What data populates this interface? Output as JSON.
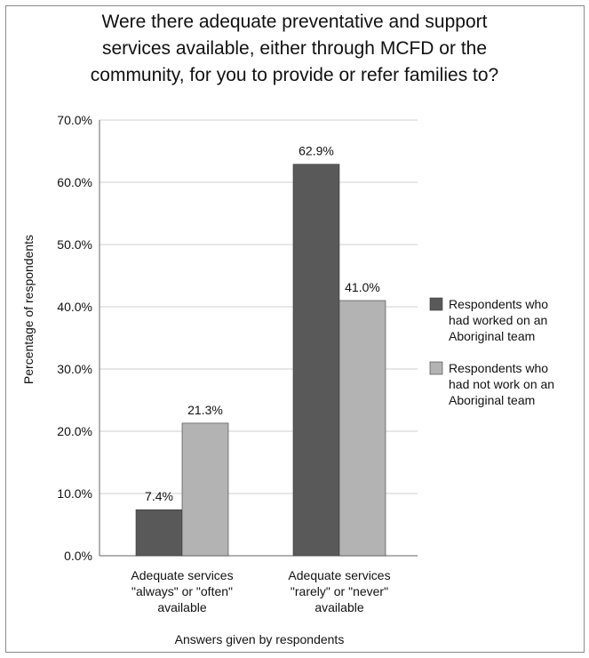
{
  "chart_data": {
    "type": "bar",
    "title": "Were there adequate preventative and support services available, either through MCFD or the community, for you to provide or refer families to?",
    "title_lines": [
      "Were there adequate preventative and support",
      "services available, either through MCFD or the",
      "community, for you to provide or refer families to?"
    ],
    "xlabel": "Answers given by respondents",
    "ylabel": "Percentage of respondents",
    "ylim": [
      0,
      70
    ],
    "yticks": [
      "0.0%",
      "10.0%",
      "20.0%",
      "30.0%",
      "40.0%",
      "50.0%",
      "60.0%",
      "70.0%"
    ],
    "grid": true,
    "legend_position": "right",
    "categories": [
      [
        "Adequate services",
        "\"always\" or \"often\"",
        "available"
      ],
      [
        "Adequate services",
        "\"rarely\" or \"never\"",
        "available"
      ]
    ],
    "series": [
      {
        "name": "Respondents who had worked on an Aboriginal team",
        "legend_lines": [
          "Respondents who",
          "had worked on an",
          "Aboriginal team"
        ],
        "color": "#595959",
        "values": [
          7.4,
          62.9
        ],
        "labels": [
          "7.4%",
          "62.9%"
        ]
      },
      {
        "name": "Respondents who had not work on an Aboriginal team",
        "legend_lines": [
          "Respondents who",
          "had not work on an",
          "Aboriginal team"
        ],
        "color": "#b3b3b3",
        "values": [
          21.3,
          41.0
        ],
        "labels": [
          "21.3%",
          "41.0%"
        ]
      }
    ]
  }
}
